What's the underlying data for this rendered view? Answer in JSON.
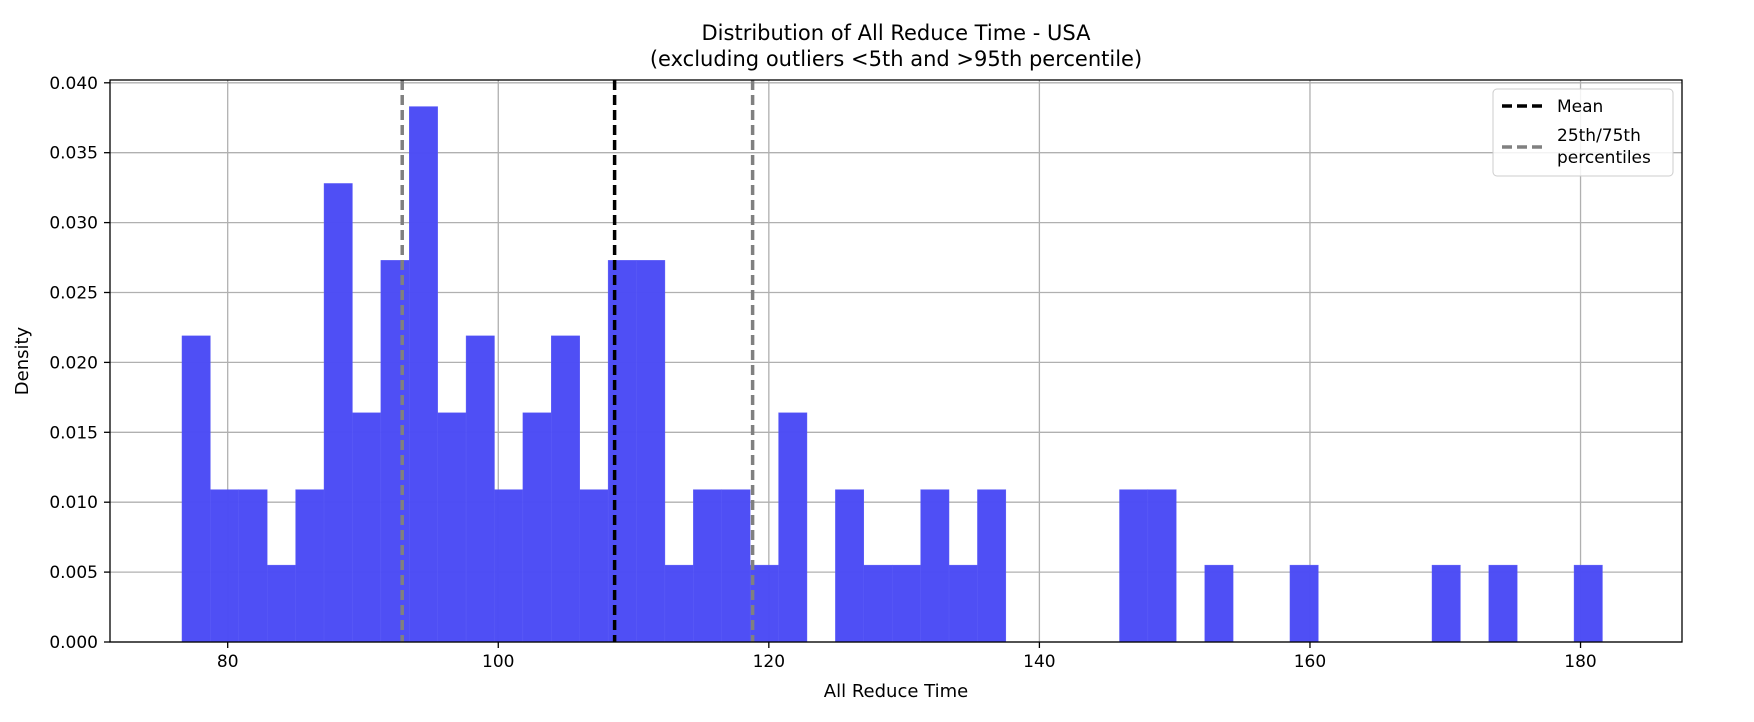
{
  "chart_data": {
    "type": "bar",
    "title": "Distribution of All Reduce Time - USA",
    "subtitle": "(excluding outliers <5th and >95th percentile)",
    "xlabel": "All Reduce Time",
    "ylabel": "Density",
    "xlim": [
      71.3,
      187.5
    ],
    "ylim": [
      0,
      0.0402
    ],
    "x_ticks": [
      80,
      100,
      120,
      140,
      160,
      180
    ],
    "y_ticks": [
      0.0,
      0.005,
      0.01,
      0.015,
      0.02,
      0.025,
      0.03,
      0.035,
      0.04
    ],
    "x_tick_labels": [
      "80",
      "100",
      "120",
      "140",
      "160",
      "180"
    ],
    "y_tick_labels": [
      "0.000",
      "0.005",
      "0.010",
      "0.015",
      "0.020",
      "0.025",
      "0.030",
      "0.035",
      "0.040"
    ],
    "grid": true,
    "bar_color": "#4b4bf5",
    "bin_start": 76.62,
    "bin_width": 2.1,
    "values": [
      0.0219,
      0.0109,
      0.0109,
      0.0055,
      0.0109,
      0.0328,
      0.0164,
      0.0273,
      0.0383,
      0.0164,
      0.0219,
      0.0109,
      0.0164,
      0.0219,
      0.0109,
      0.0273,
      0.0273,
      0.0055,
      0.0109,
      0.0109,
      0.0055,
      0.0164,
      0,
      0.0109,
      0.0055,
      0.0055,
      0.0109,
      0.0055,
      0.0109,
      0,
      0,
      0,
      0,
      0.0109,
      0.0109,
      0,
      0.0055,
      0,
      0,
      0.0055,
      0,
      0,
      0,
      0,
      0.0055,
      0,
      0.0055,
      0,
      0,
      0.0055
    ],
    "reference_lines": [
      {
        "x": 108.6,
        "color": "#000000"
      },
      {
        "x": 92.9,
        "color": "#808080"
      },
      {
        "x": 118.8,
        "color": "#808080"
      }
    ],
    "legend": {
      "position": "top-right",
      "entries": [
        {
          "label": "Mean",
          "color": "#000000"
        },
        {
          "label": "25th/75th\npercentiles",
          "color": "#808080"
        }
      ]
    }
  }
}
